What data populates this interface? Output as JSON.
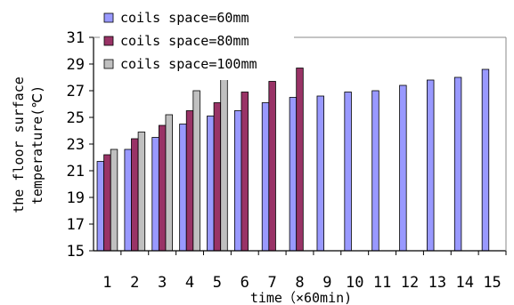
{
  "chart_data": {
    "type": "bar",
    "title": "",
    "xlabel": "time（×60min)",
    "ylabel_lines": [
      "the floor surface",
      "temperature(℃)"
    ],
    "ylim": [
      15,
      31
    ],
    "yticks": [
      "15",
      "17",
      "19",
      "21",
      "23",
      "25",
      "27",
      "29",
      "31"
    ],
    "categories": [
      "1",
      "2",
      "3",
      "4",
      "5",
      "6",
      "7",
      "8",
      "9",
      "10",
      "11",
      "12",
      "13",
      "14",
      "15"
    ],
    "legend_position": "top-left",
    "grid": false,
    "series": [
      {
        "name": "coils space=60mm",
        "color": "#9999ff",
        "values": [
          21.7,
          22.6,
          23.5,
          24.5,
          25.1,
          25.5,
          26.1,
          26.5,
          26.6,
          26.9,
          27.0,
          27.4,
          27.8,
          28.0,
          28.6
        ]
      },
      {
        "name": "coils space=80mm",
        "color": "#993366",
        "values": [
          22.2,
          23.4,
          24.4,
          25.5,
          26.1,
          26.9,
          27.7,
          28.7,
          null,
          null,
          null,
          null,
          null,
          null,
          null
        ]
      },
      {
        "name": "coils space=100mm",
        "color": "#c0c0c0",
        "values": [
          22.6,
          23.9,
          25.2,
          27.0,
          28.5,
          null,
          null,
          null,
          null,
          null,
          null,
          null,
          null,
          null,
          null
        ]
      }
    ]
  }
}
